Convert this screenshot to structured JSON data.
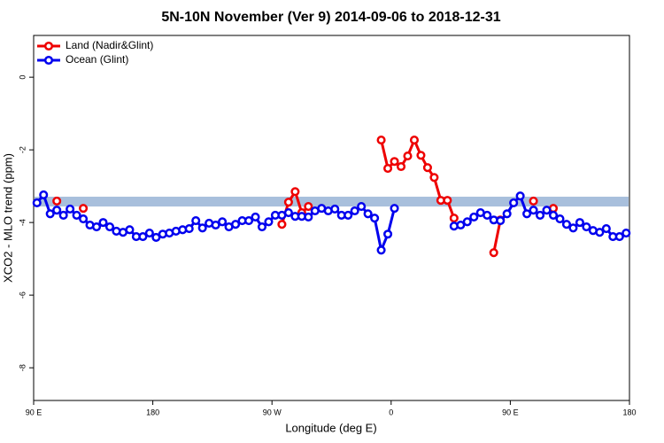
{
  "chart_data": {
    "type": "line",
    "title": "5N-10N November (Ver 9)   2014-09-06 to 2018-12-31",
    "xlabel": "Longitude (deg E)",
    "ylabel": "XCO2 - MLO trend (ppm)",
    "x": [
      92.5,
      97.5,
      102.5,
      107.5,
      112.5,
      117.5,
      122.5,
      127.5,
      132.5,
      137.5,
      142.5,
      147.5,
      152.5,
      157.5,
      162.5,
      167.5,
      172.5,
      177.5,
      182.5,
      187.5,
      192.5,
      197.5,
      202.5,
      207.5,
      212.5,
      217.5,
      222.5,
      227.5,
      232.5,
      237.5,
      242.5,
      247.5,
      252.5,
      257.5,
      262.5,
      267.5,
      272.5,
      277.5,
      282.5,
      287.5,
      292.5,
      297.5,
      302.5,
      307.5,
      312.5,
      317.5,
      322.5,
      327.5,
      332.5,
      337.5,
      342.5,
      347.5,
      352.5,
      357.5,
      362.5,
      367.5,
      372.5,
      377.5,
      382.5,
      387.5,
      392.5,
      397.5,
      402.5,
      407.5,
      412.5,
      417.5,
      422.5,
      427.5,
      432.5,
      437.5,
      442.5,
      447.5,
      452.5,
      457.5,
      462.5,
      467.5,
      472.5,
      477.5,
      482.5,
      487.5,
      492.5,
      497.5,
      502.5,
      507.5,
      512.5,
      517.5,
      522.5,
      527.5,
      532.5,
      537.5
    ],
    "series": [
      {
        "name": "Land (Nadir&Glint)",
        "color": "#ee0000",
        "values": [
          null,
          null,
          null,
          -3.41,
          null,
          null,
          null,
          -3.61,
          null,
          null,
          null,
          null,
          null,
          null,
          null,
          null,
          null,
          null,
          null,
          null,
          null,
          null,
          null,
          null,
          null,
          null,
          null,
          null,
          null,
          null,
          null,
          null,
          null,
          null,
          null,
          null,
          null,
          -4.05,
          -3.44,
          -3.15,
          -3.73,
          -3.56,
          null,
          null,
          null,
          null,
          null,
          null,
          null,
          null,
          null,
          null,
          -1.73,
          -2.51,
          -2.32,
          -2.46,
          -2.17,
          -1.73,
          -2.15,
          -2.49,
          -2.76,
          -3.39,
          -3.39,
          -3.88,
          null,
          null,
          null,
          null,
          null,
          -4.83,
          -3.93,
          null,
          null,
          null,
          null,
          -3.41,
          null,
          null,
          -3.61,
          null,
          null,
          null,
          null,
          null,
          null,
          null,
          null,
          null,
          null,
          null
        ]
      },
      {
        "name": "Ocean (Glint)",
        "color": "#0000ee",
        "values": [
          -3.46,
          -3.24,
          -3.76,
          -3.66,
          -3.8,
          -3.63,
          -3.8,
          -3.9,
          -4.07,
          -4.12,
          -4.0,
          -4.12,
          -4.24,
          -4.27,
          -4.2,
          -4.39,
          -4.39,
          -4.29,
          -4.41,
          -4.32,
          -4.29,
          -4.24,
          -4.2,
          -4.17,
          -3.95,
          -4.15,
          -4.02,
          -4.07,
          -3.98,
          -4.12,
          -4.05,
          -3.95,
          -3.95,
          -3.85,
          -4.12,
          -3.98,
          -3.8,
          -3.8,
          -3.73,
          -3.83,
          -3.83,
          -3.85,
          -3.68,
          -3.61,
          -3.68,
          -3.63,
          -3.8,
          -3.8,
          -3.68,
          -3.56,
          -3.76,
          -3.88,
          -4.76,
          -4.32,
          -3.61,
          null,
          null,
          null,
          null,
          null,
          null,
          null,
          null,
          -4.1,
          -4.07,
          -3.98,
          -3.85,
          -3.73,
          -3.8,
          -3.93,
          -3.95,
          -3.76,
          -3.46,
          -3.27,
          -3.76,
          -3.66,
          -3.8,
          -3.66,
          -3.8,
          -3.9,
          -4.05,
          -4.15,
          -4.0,
          -4.12,
          -4.22,
          -4.27,
          -4.17,
          -4.39,
          -4.39,
          -4.29
        ]
      }
    ],
    "reference_band": {
      "values": [
        -3.56,
        -3.29
      ],
      "color": "#a8bfdc"
    },
    "xlim": [
      90,
      540
    ],
    "xticks": [
      {
        "value": 90,
        "label": "90 E"
      },
      180,
      {
        "value": 270,
        "label": "90 W"
      },
      {
        "value": 360,
        "label": "0"
      },
      {
        "value": 450,
        "label": "90 E"
      },
      {
        "value": 540,
        "label": "180"
      }
    ],
    "ylim": [
      -8.9,
      1.15
    ],
    "yticks": [
      0,
      -2,
      -4,
      -6,
      -8
    ],
    "grid": false,
    "legend": "topleft"
  }
}
